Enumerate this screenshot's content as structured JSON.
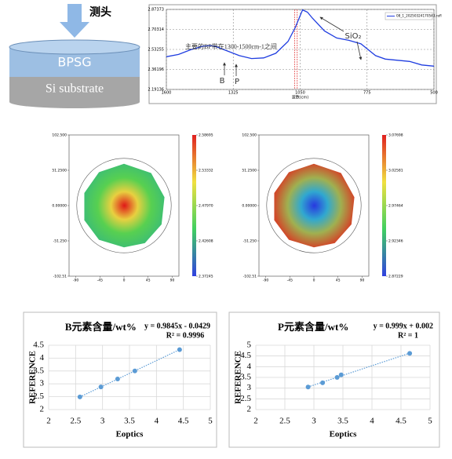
{
  "diagram": {
    "probe": "测头",
    "layer_top": "BPSG",
    "layer_bottom": "Si substrate"
  },
  "chart_data": [
    {
      "type": "line",
      "xlim": [
        1600,
        500
      ],
      "ylim": [
        2.19136,
        2.87373
      ],
      "xticks": [
        1600,
        1325,
        1050,
        775,
        500
      ],
      "yticks": [
        2.87373,
        2.70314,
        2.53255,
        2.36196,
        2.19136
      ],
      "x_label": "波数(cm)",
      "grid": true,
      "x": [
        1600,
        1550,
        1500,
        1450,
        1420,
        1400,
        1350,
        1300,
        1250,
        1200,
        1150,
        1100,
        1070,
        1050,
        1040,
        1020,
        1000,
        950,
        900,
        850,
        800,
        770,
        740,
        700,
        650,
        600,
        550,
        500
      ],
      "series": [
        {
          "name": "08_1_20250324170543.refl",
          "color": "#1f3de0",
          "values": [
            2.47,
            2.49,
            2.53,
            2.56,
            2.565,
            2.56,
            2.52,
            2.48,
            2.455,
            2.46,
            2.5,
            2.6,
            2.72,
            2.82,
            2.87,
            2.85,
            2.8,
            2.69,
            2.63,
            2.61,
            2.58,
            2.53,
            2.48,
            2.45,
            2.44,
            2.43,
            2.4,
            2.39
          ]
        }
      ],
      "vlines": [
        1072,
        1062
      ],
      "vline_color": "#e03030",
      "annotations": [
        "主要的BP带在1300-1500cm-1之间",
        "B",
        "P",
        "SiO₂"
      ]
    },
    {
      "type": "heatmap",
      "xlim": [
        -102.5,
        102.5
      ],
      "ylim": [
        -102.51,
        102.5
      ],
      "xticks": [
        -90,
        -45,
        0,
        45,
        90
      ],
      "yticks": [
        {
          "value": 102.5,
          "label": "102.500"
        },
        {
          "value": 51.25,
          "label": "51.2500"
        },
        {
          "value": 0,
          "label": "0.00000"
        },
        {
          "value": -51.25,
          "label": "-51.250"
        },
        {
          "value": -102.51,
          "label": "-102.51"
        }
      ],
      "cticks": [
        2.58695,
        2.53332,
        {
          "value": 2.4797,
          "label": "2.47970"
        },
        2.42608,
        2.37245
      ],
      "colorscale": [
        "#e02020",
        "#f0e040",
        "#40d060",
        "#3040e0"
      ],
      "colors": [
        "#e01818",
        "#e8d040",
        "#58d050",
        "#40c070"
      ]
    },
    {
      "type": "heatmap",
      "xlim": [
        -102.5,
        102.5
      ],
      "ylim": [
        -102.51,
        102.5
      ],
      "xticks": [
        -90,
        -45,
        0,
        45,
        90
      ],
      "yticks": [
        {
          "value": 102.5,
          "label": "102.500"
        },
        {
          "value": 51.25,
          "label": "51.2500"
        },
        {
          "value": 0,
          "label": "0.00000"
        },
        {
          "value": -51.25,
          "label": "-51.250"
        },
        {
          "value": -102.51,
          "label": "-102.51"
        }
      ],
      "cticks": [
        3.07698,
        3.02581,
        2.97464,
        2.92346,
        2.87229
      ],
      "colorscale": [
        "#e02020",
        "#f0e040",
        "#40d060",
        "#3040e0"
      ],
      "colors": [
        "#2838e0",
        "#30a8d0",
        "#a0b050",
        "#d04a2a"
      ]
    },
    {
      "type": "scatter",
      "title": "B元素含量/wt%",
      "equation": "y = 0.9845x - 0.0429",
      "r2": "R² = 0.9996",
      "x_label": "Eoptics",
      "y_label": "REFERENCE",
      "xlim": [
        2,
        5
      ],
      "ylim": [
        2,
        4.5
      ],
      "xticks": [
        2,
        2.5,
        3,
        3.5,
        4,
        4.5,
        5
      ],
      "yticks": [
        2,
        2.5,
        3,
        3.5,
        4,
        4.5
      ],
      "color": "#5b9bd5",
      "x": [
        2.58,
        2.97,
        3.28,
        3.6,
        4.43
      ],
      "values": [
        2.49,
        2.88,
        3.19,
        3.5,
        4.33
      ]
    },
    {
      "type": "scatter",
      "title": "P元素含量/wt%",
      "equation": "y = 0.999x + 0.002",
      "r2": "R² = 1",
      "x_label": "Eoptics",
      "y_label": "REFERENCE",
      "xlim": [
        2,
        5
      ],
      "ylim": [
        2,
        5
      ],
      "xticks": [
        2,
        2.5,
        3,
        3.5,
        4,
        4.5,
        5
      ],
      "yticks": [
        2,
        2.5,
        3,
        3.5,
        4,
        4.5,
        5
      ],
      "color": "#5b9bd5",
      "x": [
        2.9,
        3.15,
        3.4,
        3.47,
        4.65
      ],
      "values": [
        3.05,
        3.25,
        3.5,
        3.62,
        4.62
      ]
    }
  ]
}
